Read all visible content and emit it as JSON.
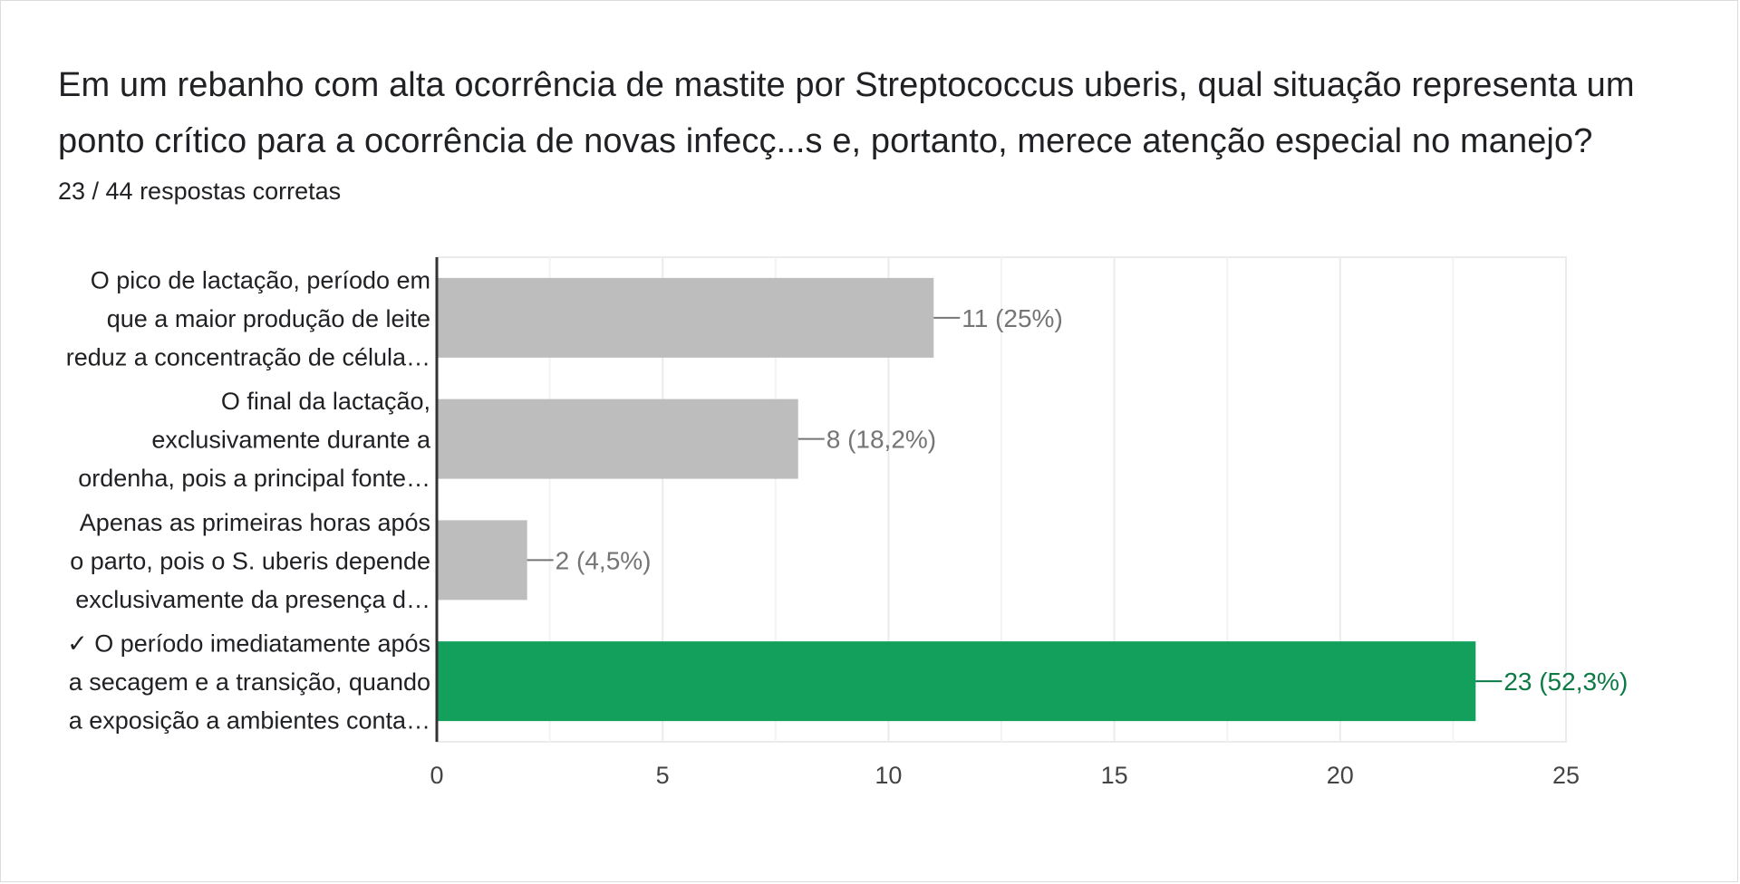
{
  "question": {
    "title": "Em um rebanho com alta ocorrência de mastite por Streptococcus uberis, qual situação representa um ponto crítico para a ocorrência de novas infecç...s e, portanto, merece atenção especial no manejo?",
    "score": "23 / 44 respostas corretas"
  },
  "colors": {
    "incorrect_bar": "#bdbdbd",
    "correct_bar": "#12a05c",
    "incorrect_label": "#757575",
    "correct_label": "#0b7a45",
    "grid": "#ebebeb",
    "axis": "#333333",
    "tick_text": "#444444",
    "category_text": "#202124"
  },
  "chart_data": {
    "type": "bar",
    "orientation": "horizontal",
    "categories": [
      [
        "O pico de lactação, período em",
        "que a maior produção de leite",
        "reduz a concentração de célula…"
      ],
      [
        "O final da lactação,",
        "exclusivamente durante a",
        "ordenha, pois a principal fonte…"
      ],
      [
        "Apenas as primeiras horas após",
        "o parto, pois o S. uberis depende",
        "exclusivamente da presença d…"
      ],
      [
        "✓ O período imediatamente após",
        "a secagem e a transição, quando",
        "a exposição a ambientes conta…"
      ]
    ],
    "values": [
      11,
      8,
      2,
      23
    ],
    "data_labels": [
      "11 (25%)",
      "8 (18,2%)",
      "2 (4,5%)",
      "23 (52,3%)"
    ],
    "correct": [
      false,
      false,
      false,
      true
    ],
    "xlim": [
      0,
      25
    ],
    "xticks": [
      0,
      5,
      10,
      15,
      20,
      25
    ],
    "minor_grid": [
      2.5,
      7.5,
      12.5,
      17.5,
      22.5
    ],
    "grid": true,
    "legend": "none",
    "title": "",
    "xlabel": "",
    "ylabel": ""
  }
}
